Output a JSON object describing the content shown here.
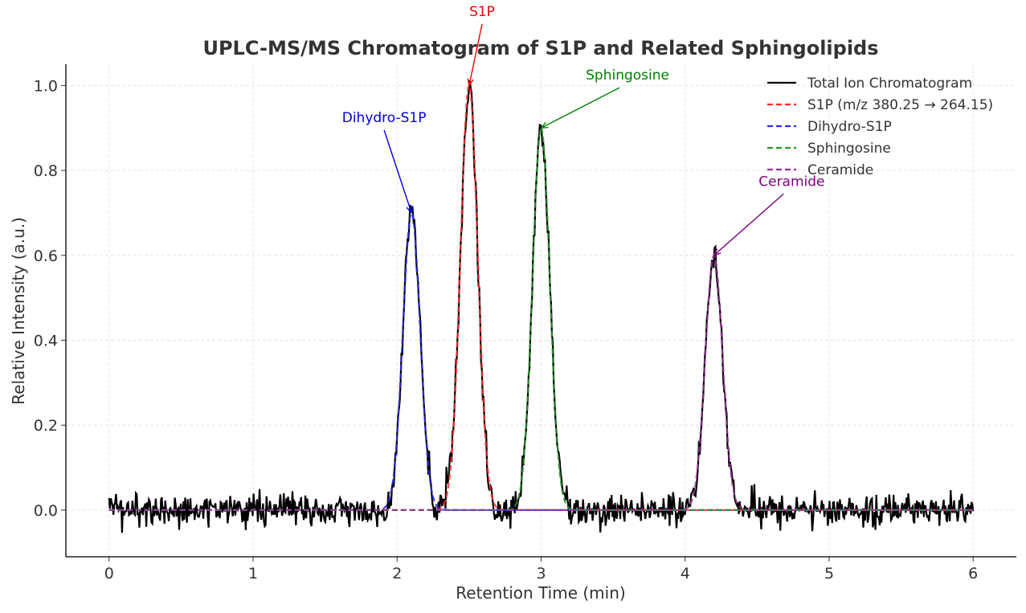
{
  "chart_data": {
    "type": "line",
    "title": "UPLC-MS/MS Chromatogram of S1P and Related Sphingolipids",
    "xlabel": "Retention Time (min)",
    "ylabel": "Relative Intensity (a.u.)",
    "xlim": [
      -0.3,
      6.3
    ],
    "ylim": [
      -0.11,
      1.05
    ],
    "xticks": [
      "0",
      "1",
      "2",
      "3",
      "4",
      "5",
      "6"
    ],
    "yticks": [
      "0.0",
      "0.2",
      "0.4",
      "0.6",
      "0.8",
      "1.0"
    ],
    "grid": true,
    "legend_position": "top-right",
    "x_range": [
      0,
      6
    ],
    "series": [
      {
        "name": "Total Ion Chromatogram",
        "color": "#000000",
        "style": "solid",
        "kind": "sum of peaks + noise",
        "noise_std": 0.02
      },
      {
        "name": "S1P (m/z 380.25 → 264.15)",
        "color": "#ff2a2a",
        "style": "dashed",
        "peak": {
          "center": 2.5,
          "height": 1.0,
          "sigma": 0.06
        }
      },
      {
        "name": "Dihydro-S1P",
        "color": "#2a2aee",
        "style": "dashed",
        "peak": {
          "center": 2.1,
          "height": 0.7,
          "sigma": 0.06
        }
      },
      {
        "name": "Sphingosine",
        "color": "#2a9a2a",
        "style": "dashed",
        "peak": {
          "center": 3.0,
          "height": 0.9,
          "sigma": 0.06
        }
      },
      {
        "name": "Ceramide",
        "color": "#993399",
        "style": "dashed",
        "peak": {
          "center": 4.2,
          "height": 0.6,
          "sigma": 0.06
        }
      }
    ],
    "annotations": [
      {
        "text": "S1P",
        "color": "#ee0000",
        "xy": [
          2.5,
          1.0
        ],
        "text_xy": [
          2.59,
          1.16
        ]
      },
      {
        "text": "Dihydro-S1P",
        "color": "#0000dd",
        "xy": [
          2.1,
          0.7
        ],
        "text_xy": [
          1.91,
          0.91
        ]
      },
      {
        "text": "Sphingosine",
        "color": "#008000",
        "xy": [
          3.0,
          0.9
        ],
        "text_xy": [
          3.6,
          1.01
        ]
      },
      {
        "text": "Ceramide",
        "color": "#800080",
        "xy": [
          4.2,
          0.6
        ],
        "text_xy": [
          4.74,
          0.76
        ]
      }
    ]
  }
}
